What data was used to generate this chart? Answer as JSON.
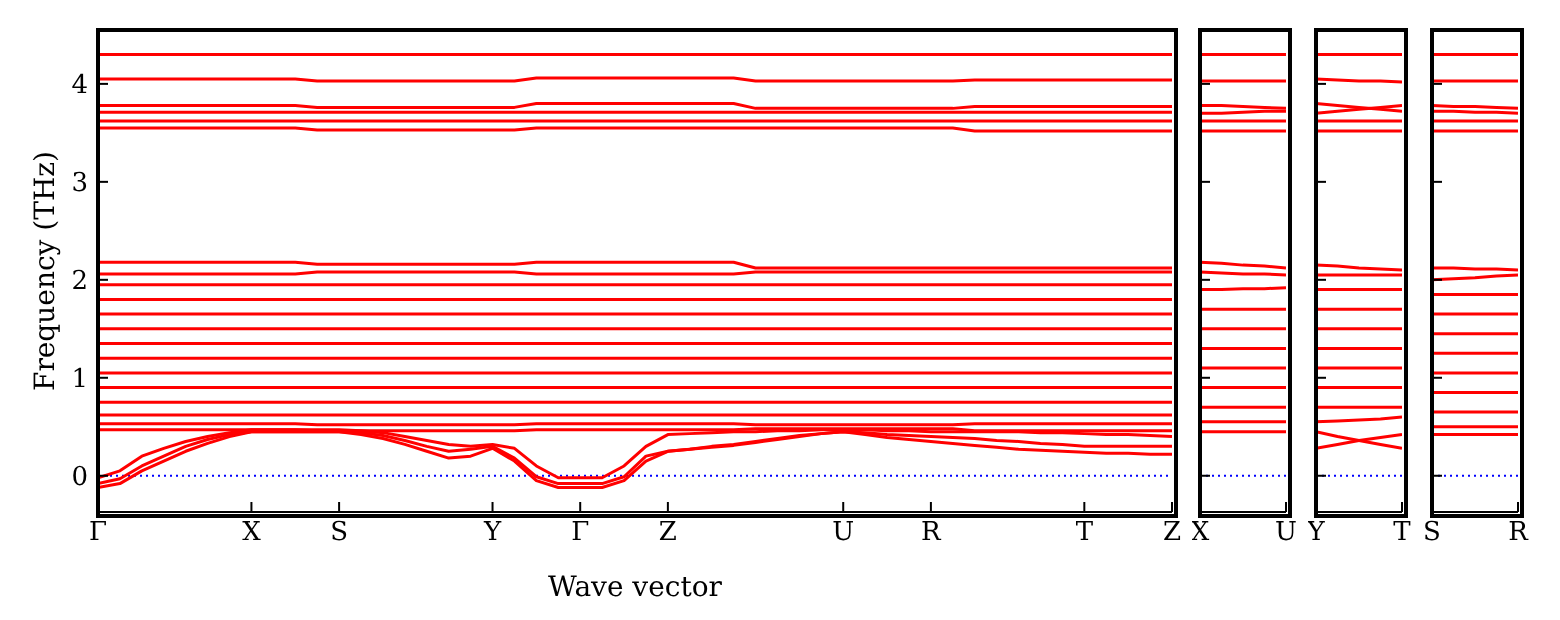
{
  "chart_data": [
    {
      "type": "line",
      "ylabel": "Frequency (THz)",
      "xlabel": "Wave vector",
      "categories": [
        "Γ",
        null,
        null,
        null,
        null,
        null,
        null,
        "X",
        null,
        null,
        null,
        "S",
        null,
        null,
        null,
        null,
        null,
        null,
        "Y",
        null,
        null,
        null,
        "Γ",
        null,
        null,
        null,
        "Z",
        null,
        null,
        null,
        null,
        null,
        null,
        null,
        "U",
        null,
        null,
        null,
        "R",
        null,
        null,
        null,
        null,
        null,
        null,
        "T",
        null,
        null,
        null,
        "Z"
      ],
      "ylim": [
        -0.37,
        4.55
      ],
      "yticks": [
        0,
        1,
        2,
        3,
        4
      ],
      "grid": false,
      "legend": false,
      "ref_lines": [
        {
          "axis": "y",
          "value": 0,
          "color": "#0000ff",
          "line_style": "dotted"
        }
      ],
      "series": [
        {
          "color": "#ff0000",
          "values": [
            4.3,
            4.3,
            4.3,
            4.3,
            4.3,
            4.3,
            4.3,
            4.3,
            4.3,
            4.3,
            4.3,
            4.3,
            4.3,
            4.3,
            4.3,
            4.3,
            4.3,
            4.3,
            4.3,
            4.3,
            4.3,
            4.3,
            4.3,
            4.3,
            4.3,
            4.3,
            4.3,
            4.3,
            4.3,
            4.3,
            4.3,
            4.3,
            4.3,
            4.3,
            4.3,
            4.3,
            4.3,
            4.3,
            4.3,
            4.3,
            4.3,
            4.3,
            4.3,
            4.3,
            4.3,
            4.3,
            4.3,
            4.3,
            4.3,
            4.3
          ]
        },
        {
          "color": "#ff0000",
          "values": [
            4.05,
            4.05,
            4.05,
            4.05,
            4.05,
            4.05,
            4.05,
            4.05,
            4.05,
            4.05,
            4.03,
            4.03,
            4.03,
            4.03,
            4.03,
            4.03,
            4.03,
            4.03,
            4.03,
            4.03,
            4.06,
            4.06,
            4.06,
            4.06,
            4.06,
            4.06,
            4.06,
            4.06,
            4.06,
            4.06,
            4.03,
            4.03,
            4.03,
            4.03,
            4.03,
            4.03,
            4.03,
            4.03,
            4.03,
            4.03,
            4.04,
            4.04,
            4.04,
            4.04,
            4.04,
            4.04,
            4.04,
            4.04,
            4.04,
            4.04
          ]
        },
        {
          "color": "#ff0000",
          "values": [
            3.78,
            3.78,
            3.78,
            3.78,
            3.78,
            3.78,
            3.78,
            3.78,
            3.78,
            3.78,
            3.76,
            3.76,
            3.76,
            3.76,
            3.76,
            3.76,
            3.76,
            3.76,
            3.76,
            3.76,
            3.8,
            3.8,
            3.8,
            3.8,
            3.8,
            3.8,
            3.8,
            3.8,
            3.8,
            3.8,
            3.75,
            3.75,
            3.75,
            3.75,
            3.75,
            3.75,
            3.75,
            3.75,
            3.75,
            3.75,
            3.77,
            3.77,
            3.77,
            3.77,
            3.77,
            3.77,
            3.77,
            3.77,
            3.77,
            3.77
          ]
        },
        {
          "color": "#ff0000",
          "values": [
            3.71,
            3.71,
            3.71,
            3.71,
            3.71,
            3.71,
            3.71,
            3.71,
            3.71,
            3.71,
            3.71,
            3.71,
            3.71,
            3.71,
            3.71,
            3.71,
            3.71,
            3.71,
            3.71,
            3.71,
            3.71,
            3.71,
            3.71,
            3.71,
            3.71,
            3.71,
            3.71,
            3.71,
            3.71,
            3.71,
            3.71,
            3.71,
            3.71,
            3.71,
            3.71,
            3.71,
            3.71,
            3.71,
            3.71,
            3.71,
            3.71,
            3.71,
            3.71,
            3.71,
            3.71,
            3.71,
            3.71,
            3.71,
            3.71,
            3.71
          ]
        },
        {
          "color": "#ff0000",
          "values": [
            3.62,
            3.62,
            3.62,
            3.62,
            3.62,
            3.62,
            3.62,
            3.62,
            3.62,
            3.62,
            3.62,
            3.62,
            3.62,
            3.62,
            3.62,
            3.62,
            3.62,
            3.62,
            3.62,
            3.62,
            3.62,
            3.62,
            3.62,
            3.62,
            3.62,
            3.62,
            3.62,
            3.62,
            3.62,
            3.62,
            3.62,
            3.62,
            3.62,
            3.62,
            3.62,
            3.62,
            3.62,
            3.62,
            3.62,
            3.62,
            3.62,
            3.62,
            3.62,
            3.62,
            3.62,
            3.62,
            3.62,
            3.62,
            3.62,
            3.62
          ]
        },
        {
          "color": "#ff0000",
          "values": [
            3.55,
            3.55,
            3.55,
            3.55,
            3.55,
            3.55,
            3.55,
            3.55,
            3.55,
            3.55,
            3.53,
            3.53,
            3.53,
            3.53,
            3.53,
            3.53,
            3.53,
            3.53,
            3.53,
            3.53,
            3.55,
            3.55,
            3.55,
            3.55,
            3.55,
            3.55,
            3.55,
            3.55,
            3.55,
            3.55,
            3.55,
            3.55,
            3.55,
            3.55,
            3.55,
            3.55,
            3.55,
            3.55,
            3.55,
            3.55,
            3.52,
            3.52,
            3.52,
            3.52,
            3.52,
            3.52,
            3.52,
            3.52,
            3.52,
            3.52
          ]
        },
        {
          "color": "#ff0000",
          "values": [
            2.18,
            2.18,
            2.18,
            2.18,
            2.18,
            2.18,
            2.18,
            2.18,
            2.18,
            2.18,
            2.16,
            2.16,
            2.16,
            2.16,
            2.16,
            2.16,
            2.16,
            2.16,
            2.16,
            2.16,
            2.18,
            2.18,
            2.18,
            2.18,
            2.18,
            2.18,
            2.18,
            2.18,
            2.18,
            2.18,
            2.12,
            2.12,
            2.12,
            2.12,
            2.12,
            2.12,
            2.12,
            2.12,
            2.12,
            2.12,
            2.12,
            2.12,
            2.12,
            2.12,
            2.12,
            2.12,
            2.12,
            2.12,
            2.12,
            2.12
          ]
        },
        {
          "color": "#ff0000",
          "values": [
            2.06,
            2.06,
            2.06,
            2.06,
            2.06,
            2.06,
            2.06,
            2.06,
            2.06,
            2.06,
            2.08,
            2.08,
            2.08,
            2.08,
            2.08,
            2.08,
            2.08,
            2.08,
            2.08,
            2.08,
            2.06,
            2.06,
            2.06,
            2.06,
            2.06,
            2.06,
            2.06,
            2.06,
            2.06,
            2.06,
            2.08,
            2.08,
            2.08,
            2.08,
            2.08,
            2.08,
            2.08,
            2.08,
            2.08,
            2.08,
            2.08,
            2.08,
            2.08,
            2.08,
            2.08,
            2.08,
            2.08,
            2.08,
            2.08,
            2.08
          ]
        },
        {
          "color": "#ff0000",
          "values": [
            1.95,
            1.95,
            1.95,
            1.95,
            1.95,
            1.95,
            1.95,
            1.95,
            1.95,
            1.95,
            1.95,
            1.95,
            1.95,
            1.95,
            1.95,
            1.95,
            1.95,
            1.95,
            1.95,
            1.95,
            1.95,
            1.95,
            1.95,
            1.95,
            1.95,
            1.95,
            1.95,
            1.95,
            1.95,
            1.95,
            1.95,
            1.95,
            1.95,
            1.95,
            1.95,
            1.95,
            1.95,
            1.95,
            1.95,
            1.95,
            1.95,
            1.95,
            1.95,
            1.95,
            1.95,
            1.95,
            1.95,
            1.95,
            1.95,
            1.95
          ]
        },
        {
          "color": "#ff0000",
          "values": [
            1.8,
            1.8,
            1.8,
            1.8,
            1.8,
            1.8,
            1.8,
            1.8,
            1.8,
            1.8,
            1.8,
            1.8,
            1.8,
            1.8,
            1.8,
            1.8,
            1.8,
            1.8,
            1.8,
            1.8,
            1.8,
            1.8,
            1.8,
            1.8,
            1.8,
            1.8,
            1.8,
            1.8,
            1.8,
            1.8,
            1.8,
            1.8,
            1.8,
            1.8,
            1.8,
            1.8,
            1.8,
            1.8,
            1.8,
            1.8,
            1.8,
            1.8,
            1.8,
            1.8,
            1.8,
            1.8,
            1.8,
            1.8,
            1.8,
            1.8
          ]
        },
        {
          "color": "#ff0000",
          "values": [
            1.65,
            1.65,
            1.65,
            1.65,
            1.65,
            1.65,
            1.65,
            1.65,
            1.65,
            1.65,
            1.65,
            1.65,
            1.65,
            1.65,
            1.65,
            1.65,
            1.65,
            1.65,
            1.65,
            1.65,
            1.65,
            1.65,
            1.65,
            1.65,
            1.65,
            1.65,
            1.65,
            1.65,
            1.65,
            1.65,
            1.65,
            1.65,
            1.65,
            1.65,
            1.65,
            1.65,
            1.65,
            1.65,
            1.65,
            1.65,
            1.65,
            1.65,
            1.65,
            1.65,
            1.65,
            1.65,
            1.65,
            1.65,
            1.65,
            1.65
          ]
        },
        {
          "color": "#ff0000",
          "values": [
            1.5,
            1.5,
            1.5,
            1.5,
            1.5,
            1.5,
            1.5,
            1.5,
            1.5,
            1.5,
            1.5,
            1.5,
            1.5,
            1.5,
            1.5,
            1.5,
            1.5,
            1.5,
            1.5,
            1.5,
            1.5,
            1.5,
            1.5,
            1.5,
            1.5,
            1.5,
            1.5,
            1.5,
            1.5,
            1.5,
            1.5,
            1.5,
            1.5,
            1.5,
            1.5,
            1.5,
            1.5,
            1.5,
            1.5,
            1.5,
            1.5,
            1.5,
            1.5,
            1.5,
            1.5,
            1.5,
            1.5,
            1.5,
            1.5,
            1.5
          ]
        },
        {
          "color": "#ff0000",
          "values": [
            1.35,
            1.35,
            1.35,
            1.35,
            1.35,
            1.35,
            1.35,
            1.35,
            1.35,
            1.35,
            1.35,
            1.35,
            1.35,
            1.35,
            1.35,
            1.35,
            1.35,
            1.35,
            1.35,
            1.35,
            1.35,
            1.35,
            1.35,
            1.35,
            1.35,
            1.35,
            1.35,
            1.35,
            1.35,
            1.35,
            1.35,
            1.35,
            1.35,
            1.35,
            1.35,
            1.35,
            1.35,
            1.35,
            1.35,
            1.35,
            1.35,
            1.35,
            1.35,
            1.35,
            1.35,
            1.35,
            1.35,
            1.35,
            1.35,
            1.35
          ]
        },
        {
          "color": "#ff0000",
          "values": [
            1.2,
            1.2,
            1.2,
            1.2,
            1.2,
            1.2,
            1.2,
            1.2,
            1.2,
            1.2,
            1.2,
            1.2,
            1.2,
            1.2,
            1.2,
            1.2,
            1.2,
            1.2,
            1.2,
            1.2,
            1.2,
            1.2,
            1.2,
            1.2,
            1.2,
            1.2,
            1.2,
            1.2,
            1.2,
            1.2,
            1.2,
            1.2,
            1.2,
            1.2,
            1.2,
            1.2,
            1.2,
            1.2,
            1.2,
            1.2,
            1.2,
            1.2,
            1.2,
            1.2,
            1.2,
            1.2,
            1.2,
            1.2,
            1.2,
            1.2
          ]
        },
        {
          "color": "#ff0000",
          "values": [
            1.05,
            1.05,
            1.05,
            1.05,
            1.05,
            1.05,
            1.05,
            1.05,
            1.05,
            1.05,
            1.05,
            1.05,
            1.05,
            1.05,
            1.05,
            1.05,
            1.05,
            1.05,
            1.05,
            1.05,
            1.05,
            1.05,
            1.05,
            1.05,
            1.05,
            1.05,
            1.05,
            1.05,
            1.05,
            1.05,
            1.05,
            1.05,
            1.05,
            1.05,
            1.05,
            1.05,
            1.05,
            1.05,
            1.05,
            1.05,
            1.05,
            1.05,
            1.05,
            1.05,
            1.05,
            1.05,
            1.05,
            1.05,
            1.05,
            1.05
          ]
        },
        {
          "color": "#ff0000",
          "values": [
            0.9,
            0.9,
            0.9,
            0.9,
            0.9,
            0.9,
            0.9,
            0.9,
            0.9,
            0.9,
            0.9,
            0.9,
            0.9,
            0.9,
            0.9,
            0.9,
            0.9,
            0.9,
            0.9,
            0.9,
            0.9,
            0.9,
            0.9,
            0.9,
            0.9,
            0.9,
            0.9,
            0.9,
            0.9,
            0.9,
            0.9,
            0.9,
            0.9,
            0.9,
            0.9,
            0.9,
            0.9,
            0.9,
            0.9,
            0.9,
            0.9,
            0.9,
            0.9,
            0.9,
            0.9,
            0.9,
            0.9,
            0.9,
            0.9,
            0.9
          ]
        },
        {
          "color": "#ff0000",
          "values": [
            0.75,
            0.75,
            0.75,
            0.75,
            0.75,
            0.75,
            0.75,
            0.75,
            0.75,
            0.75,
            0.75,
            0.75,
            0.75,
            0.75,
            0.75,
            0.75,
            0.75,
            0.75,
            0.75,
            0.75,
            0.75,
            0.75,
            0.75,
            0.75,
            0.75,
            0.75,
            0.75,
            0.75,
            0.75,
            0.75,
            0.75,
            0.75,
            0.75,
            0.75,
            0.75,
            0.75,
            0.75,
            0.75,
            0.75,
            0.75,
            0.75,
            0.75,
            0.75,
            0.75,
            0.75,
            0.75,
            0.75,
            0.75,
            0.75,
            0.75
          ]
        },
        {
          "color": "#ff0000",
          "values": [
            0.62,
            0.62,
            0.62,
            0.62,
            0.62,
            0.62,
            0.62,
            0.62,
            0.62,
            0.62,
            0.62,
            0.62,
            0.62,
            0.62,
            0.62,
            0.62,
            0.62,
            0.62,
            0.62,
            0.62,
            0.62,
            0.62,
            0.62,
            0.62,
            0.62,
            0.62,
            0.62,
            0.62,
            0.62,
            0.62,
            0.62,
            0.62,
            0.62,
            0.62,
            0.62,
            0.62,
            0.62,
            0.62,
            0.62,
            0.62,
            0.62,
            0.62,
            0.62,
            0.62,
            0.62,
            0.62,
            0.62,
            0.62,
            0.62,
            0.62
          ]
        },
        {
          "color": "#ff0000",
          "values": [
            0.53,
            0.53,
            0.53,
            0.53,
            0.53,
            0.53,
            0.53,
            0.53,
            0.53,
            0.53,
            0.52,
            0.52,
            0.52,
            0.52,
            0.52,
            0.52,
            0.52,
            0.52,
            0.52,
            0.52,
            0.53,
            0.53,
            0.53,
            0.53,
            0.53,
            0.53,
            0.53,
            0.53,
            0.53,
            0.53,
            0.52,
            0.52,
            0.52,
            0.52,
            0.52,
            0.52,
            0.52,
            0.52,
            0.52,
            0.52,
            0.53,
            0.53,
            0.53,
            0.53,
            0.53,
            0.53,
            0.53,
            0.53,
            0.53,
            0.53
          ]
        },
        {
          "color": "#ff0000",
          "values": [
            0.47,
            0.47,
            0.47,
            0.47,
            0.47,
            0.47,
            0.47,
            0.47,
            0.47,
            0.47,
            0.46,
            0.46,
            0.46,
            0.46,
            0.46,
            0.46,
            0.46,
            0.46,
            0.46,
            0.46,
            0.47,
            0.47,
            0.47,
            0.47,
            0.47,
            0.47,
            0.47,
            0.47,
            0.47,
            0.47,
            0.48,
            0.48,
            0.48,
            0.48,
            0.48,
            0.48,
            0.48,
            0.48,
            0.48,
            0.48,
            0.46,
            0.46,
            0.46,
            0.46,
            0.46,
            0.46,
            0.46,
            0.46,
            0.46,
            0.46
          ]
        },
        {
          "color": "#ff0000",
          "values": [
            -0.12,
            -0.08,
            0.05,
            0.15,
            0.25,
            0.33,
            0.4,
            0.45,
            0.45,
            0.45,
            0.45,
            0.45,
            0.42,
            0.38,
            0.32,
            0.25,
            0.18,
            0.2,
            0.28,
            0.15,
            -0.05,
            -0.12,
            -0.12,
            -0.12,
            -0.05,
            0.15,
            0.25,
            0.27,
            0.3,
            0.32,
            0.35,
            0.38,
            0.41,
            0.43,
            0.45,
            0.42,
            0.39,
            0.37,
            0.35,
            0.33,
            0.31,
            0.29,
            0.27,
            0.26,
            0.25,
            0.24,
            0.23,
            0.23,
            0.22,
            0.22
          ]
        },
        {
          "color": "#ff0000",
          "values": [
            -0.08,
            -0.03,
            0.1,
            0.2,
            0.3,
            0.37,
            0.42,
            0.45,
            0.45,
            0.45,
            0.45,
            0.45,
            0.44,
            0.41,
            0.36,
            0.3,
            0.25,
            0.27,
            0.3,
            0.18,
            -0.01,
            -0.08,
            -0.08,
            -0.08,
            -0.01,
            0.2,
            0.25,
            0.27,
            0.29,
            0.31,
            0.34,
            0.37,
            0.4,
            0.43,
            0.45,
            0.44,
            0.42,
            0.41,
            0.4,
            0.39,
            0.38,
            0.36,
            0.35,
            0.33,
            0.32,
            0.3,
            0.3,
            0.3,
            0.3,
            0.3
          ]
        },
        {
          "color": "#ff0000",
          "values": [
            -0.02,
            0.05,
            0.2,
            0.28,
            0.35,
            0.4,
            0.44,
            0.47,
            0.47,
            0.47,
            0.47,
            0.47,
            0.46,
            0.44,
            0.4,
            0.36,
            0.32,
            0.3,
            0.32,
            0.28,
            0.1,
            -0.02,
            -0.02,
            -0.02,
            0.1,
            0.3,
            0.42,
            0.43,
            0.44,
            0.45,
            0.45,
            0.46,
            0.46,
            0.47,
            0.47,
            0.47,
            0.46,
            0.46,
            0.45,
            0.45,
            0.45,
            0.45,
            0.45,
            0.44,
            0.44,
            0.43,
            0.42,
            0.42,
            0.41,
            0.4
          ]
        }
      ]
    },
    {
      "type": "line",
      "categories": [
        "X",
        null,
        null,
        null,
        "U"
      ],
      "ylim": [
        -0.37,
        4.55
      ],
      "yticks": [
        0,
        1,
        2,
        3,
        4
      ],
      "tick_labels": "x",
      "grid": false,
      "legend": false,
      "ref_lines": [
        {
          "axis": "y",
          "value": 0,
          "color": "#0000ff",
          "line_style": "dotted"
        }
      ],
      "series": [
        {
          "color": "#ff0000",
          "values": [
            4.3,
            4.3,
            4.3,
            4.3,
            4.3
          ]
        },
        {
          "color": "#ff0000",
          "values": [
            4.03,
            4.03,
            4.03,
            4.03,
            4.03
          ]
        },
        {
          "color": "#ff0000",
          "values": [
            3.78,
            3.78,
            3.77,
            3.76,
            3.75
          ]
        },
        {
          "color": "#ff0000",
          "values": [
            3.7,
            3.7,
            3.71,
            3.72,
            3.72
          ]
        },
        {
          "color": "#ff0000",
          "values": [
            3.62,
            3.62,
            3.62,
            3.62,
            3.62
          ]
        },
        {
          "color": "#ff0000",
          "values": [
            3.52,
            3.52,
            3.52,
            3.52,
            3.52
          ]
        },
        {
          "color": "#ff0000",
          "values": [
            2.18,
            2.17,
            2.15,
            2.14,
            2.12
          ]
        },
        {
          "color": "#ff0000",
          "values": [
            2.08,
            2.07,
            2.06,
            2.06,
            2.05
          ]
        },
        {
          "color": "#ff0000",
          "values": [
            1.9,
            1.9,
            1.91,
            1.91,
            1.92
          ]
        },
        {
          "color": "#ff0000",
          "values": [
            1.7,
            1.7,
            1.7,
            1.7,
            1.7
          ]
        },
        {
          "color": "#ff0000",
          "values": [
            1.5,
            1.5,
            1.5,
            1.5,
            1.5
          ]
        },
        {
          "color": "#ff0000",
          "values": [
            1.3,
            1.3,
            1.3,
            1.3,
            1.3
          ]
        },
        {
          "color": "#ff0000",
          "values": [
            1.1,
            1.1,
            1.1,
            1.1,
            1.1
          ]
        },
        {
          "color": "#ff0000",
          "values": [
            0.9,
            0.9,
            0.9,
            0.9,
            0.9
          ]
        },
        {
          "color": "#ff0000",
          "values": [
            0.7,
            0.7,
            0.7,
            0.7,
            0.7
          ]
        },
        {
          "color": "#ff0000",
          "values": [
            0.55,
            0.55,
            0.55,
            0.55,
            0.55
          ]
        },
        {
          "color": "#ff0000",
          "values": [
            0.45,
            0.45,
            0.45,
            0.45,
            0.45
          ]
        }
      ]
    },
    {
      "type": "line",
      "categories": [
        "Y",
        null,
        null,
        null,
        "T"
      ],
      "ylim": [
        -0.37,
        4.55
      ],
      "yticks": [
        0,
        1,
        2,
        3,
        4
      ],
      "tick_labels": "x",
      "grid": false,
      "legend": false,
      "ref_lines": [
        {
          "axis": "y",
          "value": 0,
          "color": "#0000ff",
          "line_style": "dotted"
        }
      ],
      "series": [
        {
          "color": "#ff0000",
          "values": [
            4.3,
            4.3,
            4.3,
            4.3,
            4.3
          ]
        },
        {
          "color": "#ff0000",
          "values": [
            4.05,
            4.04,
            4.03,
            4.03,
            4.02
          ]
        },
        {
          "color": "#ff0000",
          "values": [
            3.8,
            3.78,
            3.76,
            3.74,
            3.72
          ]
        },
        {
          "color": "#ff0000",
          "values": [
            3.7,
            3.72,
            3.74,
            3.76,
            3.78
          ]
        },
        {
          "color": "#ff0000",
          "values": [
            3.62,
            3.62,
            3.62,
            3.62,
            3.62
          ]
        },
        {
          "color": "#ff0000",
          "values": [
            3.52,
            3.52,
            3.52,
            3.52,
            3.52
          ]
        },
        {
          "color": "#ff0000",
          "values": [
            2.15,
            2.14,
            2.12,
            2.11,
            2.1
          ]
        },
        {
          "color": "#ff0000",
          "values": [
            2.05,
            2.05,
            2.05,
            2.05,
            2.05
          ]
        },
        {
          "color": "#ff0000",
          "values": [
            1.9,
            1.9,
            1.9,
            1.9,
            1.9
          ]
        },
        {
          "color": "#ff0000",
          "values": [
            1.7,
            1.7,
            1.7,
            1.7,
            1.7
          ]
        },
        {
          "color": "#ff0000",
          "values": [
            1.5,
            1.5,
            1.5,
            1.5,
            1.5
          ]
        },
        {
          "color": "#ff0000",
          "values": [
            1.3,
            1.3,
            1.3,
            1.3,
            1.3
          ]
        },
        {
          "color": "#ff0000",
          "values": [
            1.1,
            1.1,
            1.1,
            1.1,
            1.1
          ]
        },
        {
          "color": "#ff0000",
          "values": [
            0.9,
            0.9,
            0.9,
            0.9,
            0.9
          ]
        },
        {
          "color": "#ff0000",
          "values": [
            0.7,
            0.7,
            0.7,
            0.7,
            0.7
          ]
        },
        {
          "color": "#ff0000",
          "values": [
            0.55,
            0.56,
            0.57,
            0.58,
            0.6
          ]
        },
        {
          "color": "#ff0000",
          "values": [
            0.45,
            0.4,
            0.36,
            0.32,
            0.28
          ]
        },
        {
          "color": "#ff0000",
          "values": [
            0.28,
            0.32,
            0.36,
            0.39,
            0.42
          ]
        }
      ]
    },
    {
      "type": "line",
      "categories": [
        "S",
        null,
        null,
        null,
        "R"
      ],
      "ylim": [
        -0.37,
        4.55
      ],
      "yticks": [
        0,
        1,
        2,
        3,
        4
      ],
      "tick_labels": "x",
      "grid": false,
      "legend": false,
      "ref_lines": [
        {
          "axis": "y",
          "value": 0,
          "color": "#0000ff",
          "line_style": "dotted"
        }
      ],
      "series": [
        {
          "color": "#ff0000",
          "values": [
            4.3,
            4.3,
            4.3,
            4.3,
            4.3
          ]
        },
        {
          "color": "#ff0000",
          "values": [
            4.03,
            4.03,
            4.03,
            4.03,
            4.03
          ]
        },
        {
          "color": "#ff0000",
          "values": [
            3.78,
            3.77,
            3.77,
            3.76,
            3.75
          ]
        },
        {
          "color": "#ff0000",
          "values": [
            3.72,
            3.72,
            3.71,
            3.71,
            3.7
          ]
        },
        {
          "color": "#ff0000",
          "values": [
            3.62,
            3.62,
            3.62,
            3.62,
            3.62
          ]
        },
        {
          "color": "#ff0000",
          "values": [
            3.52,
            3.52,
            3.52,
            3.52,
            3.52
          ]
        },
        {
          "color": "#ff0000",
          "values": [
            2.12,
            2.12,
            2.11,
            2.11,
            2.1
          ]
        },
        {
          "color": "#ff0000",
          "values": [
            2.0,
            2.01,
            2.02,
            2.04,
            2.05
          ]
        },
        {
          "color": "#ff0000",
          "values": [
            1.85,
            1.85,
            1.85,
            1.85,
            1.85
          ]
        },
        {
          "color": "#ff0000",
          "values": [
            1.65,
            1.65,
            1.65,
            1.65,
            1.65
          ]
        },
        {
          "color": "#ff0000",
          "values": [
            1.45,
            1.45,
            1.45,
            1.45,
            1.45
          ]
        },
        {
          "color": "#ff0000",
          "values": [
            1.25,
            1.25,
            1.25,
            1.25,
            1.25
          ]
        },
        {
          "color": "#ff0000",
          "values": [
            1.05,
            1.05,
            1.05,
            1.05,
            1.05
          ]
        },
        {
          "color": "#ff0000",
          "values": [
            0.85,
            0.85,
            0.85,
            0.85,
            0.85
          ]
        },
        {
          "color": "#ff0000",
          "values": [
            0.65,
            0.65,
            0.65,
            0.65,
            0.65
          ]
        },
        {
          "color": "#ff0000",
          "values": [
            0.5,
            0.5,
            0.5,
            0.5,
            0.5
          ]
        },
        {
          "color": "#ff0000",
          "values": [
            0.42,
            0.42,
            0.42,
            0.42,
            0.42
          ]
        }
      ]
    }
  ]
}
